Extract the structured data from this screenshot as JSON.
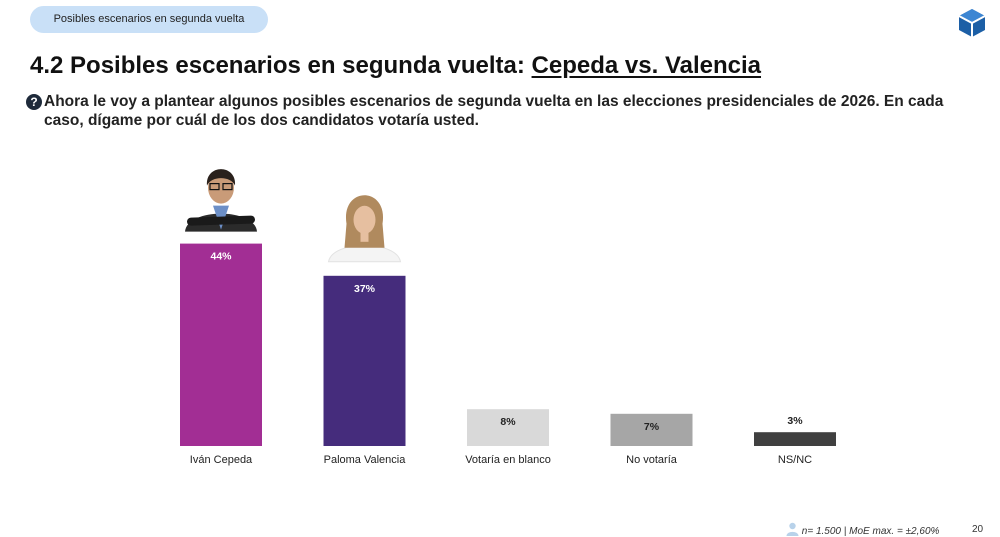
{
  "header": {
    "pill_label": "Posibles escenarios en segunda vuelta",
    "title_prefix": "4.2 Posibles escenarios en segunda vuelta: ",
    "title_candidates": "Cepeda vs. Valencia",
    "question": "Ahora le voy a plantear algunos posibles escenarios de segunda vuelta en las elecciones presidenciales de 2026. En cada caso, dígame por cuál de los dos candidatos votaría usted.",
    "question_icon": "?"
  },
  "chart_data": {
    "type": "bar",
    "categories": [
      "Iván Cepeda",
      "Paloma Valencia",
      "Votaría en blanco",
      "No votaría",
      "NS/NC"
    ],
    "values": [
      44,
      37,
      8,
      7,
      3
    ],
    "data_labels": [
      "44%",
      "37%",
      "8%",
      "7%",
      "3%"
    ],
    "colors": [
      "#a22e94",
      "#452c7c",
      "#d9d9d9",
      "#a6a6a6",
      "#404040"
    ],
    "label_colors": [
      "#ffffff",
      "#ffffff",
      "#222222",
      "#222222",
      "#222222"
    ],
    "label_inside": [
      true,
      true,
      true,
      true,
      false
    ],
    "photos": [
      "man-portrait-icon",
      "woman-portrait-icon"
    ],
    "title": "",
    "xlabel": "",
    "ylabel": ""
  },
  "footer": {
    "sample_text": "n= 1.500",
    "moe_text": "| MoE max. = ±2,60%",
    "page_number": "20",
    "person_icon": "person-icon"
  }
}
